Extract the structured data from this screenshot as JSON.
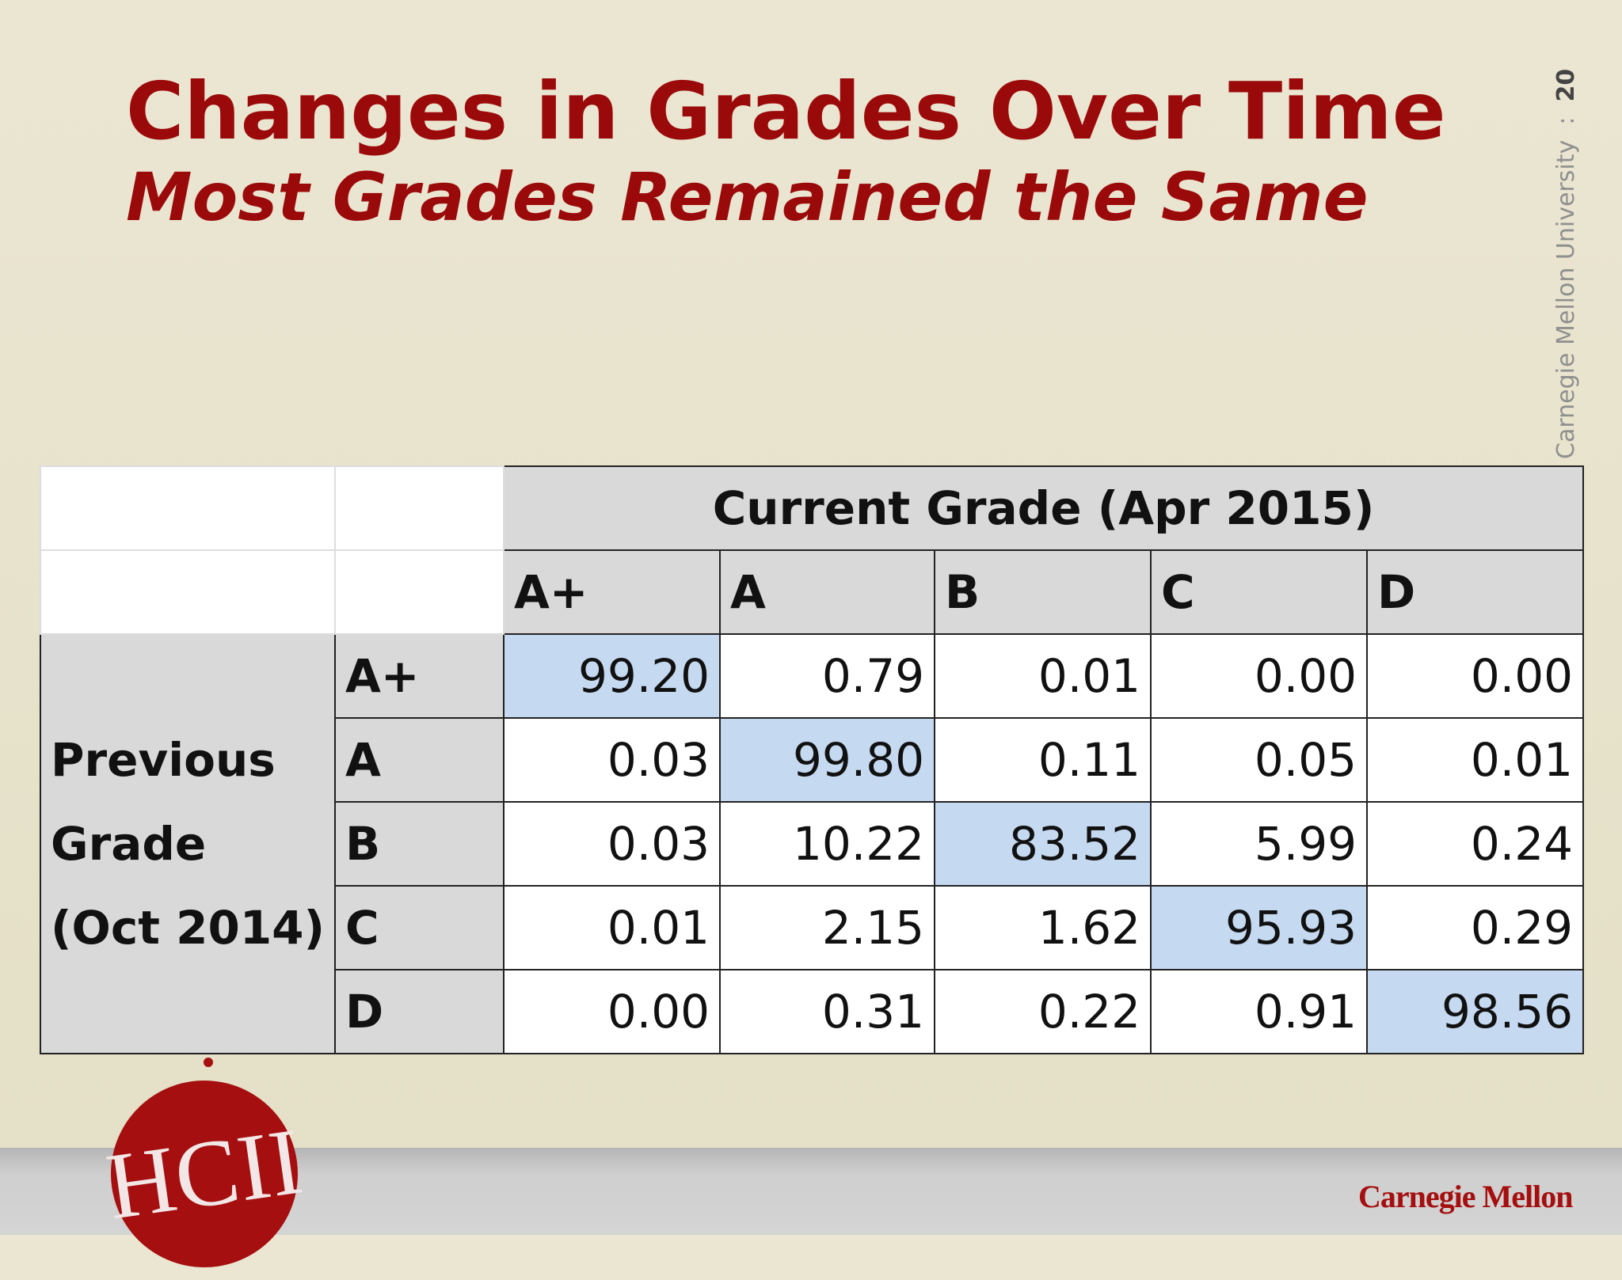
{
  "header": {
    "title": "Changes in Grades Over Time",
    "subtitle": "Most Grades Remained the Same"
  },
  "side": {
    "org": "Carnegie Mellon University",
    "separator": ":",
    "page": "20"
  },
  "table": {
    "column_group": "Current Grade (Apr 2015)",
    "columns": [
      "A+",
      "A",
      "B",
      "C",
      "D"
    ],
    "row_group": [
      "Previous",
      "Grade",
      "(Oct 2014)"
    ],
    "rows": [
      {
        "label": "A+",
        "values": [
          "99.20",
          "0.79",
          "0.01",
          "0.00",
          "0.00"
        ]
      },
      {
        "label": "A",
        "values": [
          "0.03",
          "99.80",
          "0.11",
          "0.05",
          "0.01"
        ]
      },
      {
        "label": "B",
        "values": [
          "0.03",
          "10.22",
          "83.52",
          "5.99",
          "0.24"
        ]
      },
      {
        "label": "C",
        "values": [
          "0.01",
          "2.15",
          "1.62",
          "95.93",
          "0.29"
        ]
      },
      {
        "label": "D",
        "values": [
          "0.00",
          "0.31",
          "0.22",
          "0.91",
          "98.56"
        ]
      }
    ],
    "highlight_color": "#c5d9f1"
  },
  "footer": {
    "logo": "HCII",
    "brand": "Carnegie Mellon"
  }
}
